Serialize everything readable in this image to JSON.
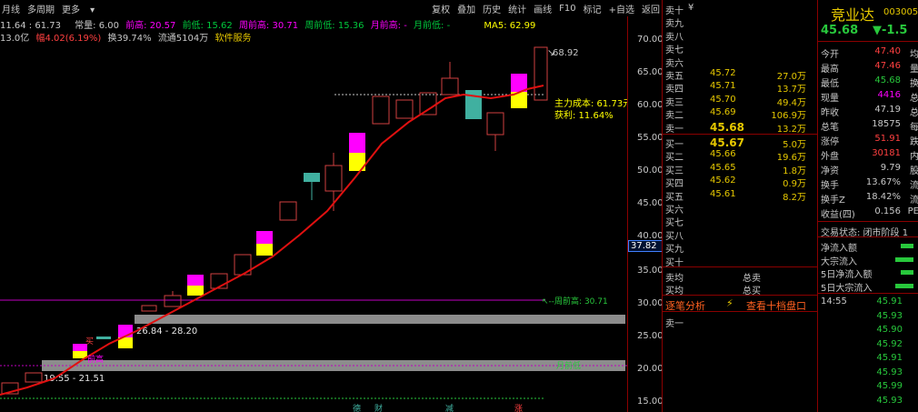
{
  "topbar": {
    "left": [
      "月线",
      "多周期",
      "更多"
    ],
    "right": [
      "复权",
      "叠加",
      "历史",
      "统计",
      "画线",
      "F10",
      "标记",
      "+自选",
      "返回"
    ]
  },
  "info_row1": [
    {
      "text": "11.64 : 61.73",
      "color": "#c8c8c8"
    },
    {
      "text": "常量: 6.00",
      "color": "#c8c8c8"
    },
    {
      "text": "前高: 20.57",
      "color": "#ff00ff"
    },
    {
      "text": "前低: 15.62",
      "color": "#00c83c"
    },
    {
      "text": "周前高: 30.71",
      "color": "#ff00ff"
    },
    {
      "text": "周前低: 15.36",
      "color": "#00c83c"
    },
    {
      "text": "月前高: -",
      "color": "#ff00ff"
    },
    {
      "text": "月前低: -",
      "color": "#00c83c"
    },
    {
      "text": "MA5: 62.99",
      "color": "#ffff00"
    }
  ],
  "info_row2": [
    {
      "text": "13.0亿",
      "color": "#c8c8c8"
    },
    {
      "text": "幅4.02(6.19%)",
      "color": "#ff4040"
    },
    {
      "text": "换39.74%",
      "color": "#c8c8c8"
    },
    {
      "text": "流通5104万",
      "color": "#c8c8c8"
    },
    {
      "text": "软件服务",
      "color": "#e6c800"
    }
  ],
  "chart_annotations": {
    "high_label": "68.92",
    "cost": "主力成本: 61.73元",
    "profit": "获利: 11.64%",
    "weekly_high": "周前高: 30.71",
    "zone1": "26.84 - 28.20",
    "zone2": "19.55 - 21.51",
    "monthly_high_label": "前高",
    "monthly_low_label": "月前低",
    "buy_marker": "买",
    "current_price_tag": "37.82",
    "bottom_tags": [
      "德",
      "财",
      "减",
      "涨"
    ]
  },
  "axis": {
    "ticks": [
      "70.00",
      "65.00",
      "60.00",
      "55.00",
      "50.00",
      "45.00",
      "40.00",
      "35.00",
      "30.00",
      "25.00",
      "20.00",
      "15.00"
    ]
  },
  "book": {
    "header_right": "¥",
    "sell": [
      {
        "label": "卖十",
        "price": "",
        "vol": ""
      },
      {
        "label": "卖九",
        "price": "",
        "vol": ""
      },
      {
        "label": "卖八",
        "price": "",
        "vol": ""
      },
      {
        "label": "卖七",
        "price": "",
        "vol": ""
      },
      {
        "label": "卖六",
        "price": "",
        "vol": ""
      },
      {
        "label": "卖五",
        "price": "45.72",
        "vol": "27.0万"
      },
      {
        "label": "卖四",
        "price": "45.71",
        "vol": "13.7万"
      },
      {
        "label": "卖三",
        "price": "45.70",
        "vol": "49.4万"
      },
      {
        "label": "卖二",
        "price": "45.69",
        "vol": "106.9万"
      },
      {
        "label": "卖一",
        "price": "45.68",
        "vol": "13.2万"
      }
    ],
    "buy": [
      {
        "label": "买一",
        "price": "45.67",
        "vol": "5.0万"
      },
      {
        "label": "买二",
        "price": "45.66",
        "vol": "19.6万"
      },
      {
        "label": "买三",
        "price": "45.65",
        "vol": "1.8万"
      },
      {
        "label": "买四",
        "price": "45.62",
        "vol": "0.9万"
      },
      {
        "label": "买五",
        "price": "45.61",
        "vol": "8.2万"
      },
      {
        "label": "买六",
        "price": "",
        "vol": ""
      },
      {
        "label": "买七",
        "price": "",
        "vol": ""
      },
      {
        "label": "买八",
        "price": "",
        "vol": ""
      },
      {
        "label": "买九",
        "price": "",
        "vol": ""
      },
      {
        "label": "买十",
        "price": "",
        "vol": ""
      }
    ],
    "avg_sell": "卖均",
    "total_sell": "总卖",
    "avg_buy": "买均",
    "total_buy": "总买",
    "tick_analysis": "逐笔分析",
    "view_ten": "查看十档盘口",
    "sell_one_bottom": "卖一"
  },
  "stock": {
    "name": "竞业达",
    "code": "003005",
    "price": "45.68",
    "change": "▼-1.5"
  },
  "stats": [
    {
      "k": "今开",
      "v": "47.40",
      "color": "#ff4040",
      "k2": "均"
    },
    {
      "k": "最高",
      "v": "47.46",
      "color": "#ff4040",
      "k2": "量"
    },
    {
      "k": "最低",
      "v": "45.68",
      "color": "#28c83c",
      "k2": "换"
    },
    {
      "k": "现量",
      "v": "4416",
      "color": "#ff00ff",
      "k2": "总"
    },
    {
      "k": "昨收",
      "v": "47.19",
      "color": "#c8c8c8",
      "k2": "总"
    },
    {
      "k": "总笔",
      "v": "18575",
      "color": "#c8c8c8",
      "k2": "每"
    },
    {
      "k": "涨停",
      "v": "51.91",
      "color": "#ff4040",
      "k2": "跌"
    },
    {
      "k": "外盘",
      "v": "30181",
      "color": "#ff4040",
      "k2": "内"
    },
    {
      "k": "净资",
      "v": "9.79",
      "color": "#c8c8c8",
      "k2": "股"
    },
    {
      "k": "换手",
      "v": "13.67%",
      "color": "#c8c8c8",
      "k2": "流"
    },
    {
      "k": "换手Z",
      "v": "18.42%",
      "color": "#c8c8c8",
      "k2": "流"
    },
    {
      "k": "收益(四)",
      "v": "0.156",
      "color": "#c8c8c8",
      "k2": "PE"
    }
  ],
  "trade_status": "交易状态: 闭市阶段 1",
  "flows": [
    "净流入额",
    "大宗流入",
    "5日净流入额",
    "5日大宗流入"
  ],
  "ticks": [
    {
      "t": "14:55",
      "p": "45.91"
    },
    {
      "t": "",
      "p": "45.93"
    },
    {
      "t": "",
      "p": "45.90"
    },
    {
      "t": "",
      "p": "45.92"
    },
    {
      "t": "",
      "p": "45.91"
    },
    {
      "t": "",
      "p": "45.93"
    },
    {
      "t": "",
      "p": "45.99"
    },
    {
      "t": "",
      "p": "45.93"
    }
  ],
  "colors": {
    "up_pink": "#ff00ff",
    "up_yellow": "#ffff00",
    "teal": "#40b0a0",
    "red_line": "#e01010",
    "zone_gray": "#8c8c8c",
    "hollow_red": "#d04040"
  }
}
